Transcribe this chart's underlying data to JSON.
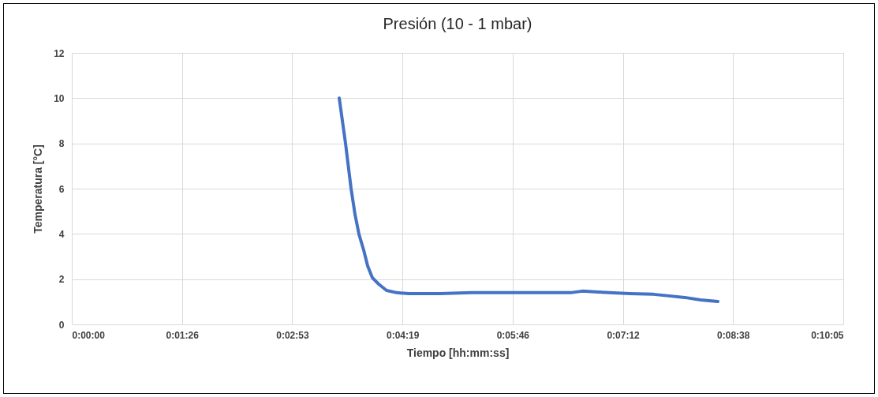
{
  "chart_data": {
    "type": "line",
    "title": "Presión (10 - 1 mbar)",
    "xlabel": "Tiempo [hh:mm:ss]",
    "ylabel": "Temperatura [°C]",
    "x": [
      0.05824,
      0.05961,
      0.06082,
      0.06168,
      0.06254,
      0.06357,
      0.06443,
      0.06546,
      0.06683,
      0.06855,
      0.07078,
      0.07336,
      0.08023,
      0.0871,
      0.09569,
      0.10428,
      0.10858,
      0.11115,
      0.11459,
      0.12146,
      0.12662,
      0.13005,
      0.13349,
      0.13693,
      0.1407
    ],
    "series": [
      {
        "color": "#4472c4",
        "values": [
          10,
          8,
          6,
          4.85,
          3.98,
          3.28,
          2.58,
          2.06,
          1.78,
          1.5,
          1.4,
          1.36,
          1.36,
          1.4,
          1.4,
          1.4,
          1.4,
          1.47,
          1.43,
          1.36,
          1.33,
          1.26,
          1.19,
          1.08,
          1.01
        ]
      }
    ],
    "xlim": [
      0,
      0.168
    ],
    "xticks": [
      {
        "value": 0,
        "label": "0:00:00"
      },
      {
        "value": 0.024,
        "label": "0:01:26"
      },
      {
        "value": 0.048,
        "label": "0:02:53"
      },
      {
        "value": 0.072,
        "label": "0:04:19"
      },
      {
        "value": 0.096,
        "label": "0:05:46"
      },
      {
        "value": 0.12,
        "label": "0:07:12"
      },
      {
        "value": 0.144,
        "label": "0:08:38"
      },
      {
        "value": 0.168,
        "label": "0:10:05"
      }
    ],
    "ylim": [
      0,
      12
    ],
    "yticks": [
      0,
      2,
      4,
      6,
      8,
      10,
      12
    ],
    "grid": true,
    "marker": "none",
    "line_style": "solid"
  }
}
